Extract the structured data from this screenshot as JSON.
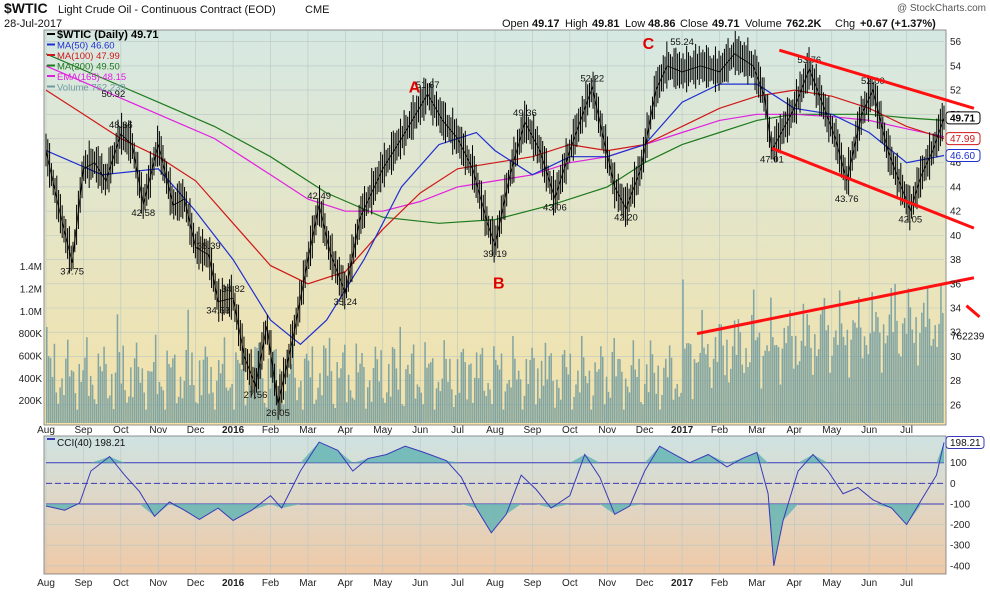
{
  "header": {
    "symbol": "$WTIC",
    "title": "Light Crude Oil - Continuous Contract (EOD)",
    "exchange": "CME",
    "date": "28-Jul-2017",
    "open_label": "Open",
    "open": "49.17",
    "high_label": "High",
    "high": "49.81",
    "low_label": "Low",
    "low": "48.86",
    "close_label": "Close",
    "close": "49.71",
    "volume_label": "Volume",
    "volume": "762.2K",
    "chg_label": "Chg",
    "chg": "+0.67 (+1.37%)",
    "watermark": "@ StockCharts.com"
  },
  "colors": {
    "price": "#000000",
    "ma50": "#1f2fd0",
    "ma100": "#d01818",
    "ma200": "#1d7a1d",
    "ema165": "#e020e0",
    "volume": "#6e9aa0",
    "cci": "#3a3ab8",
    "trend": "#ff1010",
    "price_bg_top": "#d6e8e3",
    "price_bg_bottom": "#f4e2a8",
    "cci_bg_top": "#cfe3e2",
    "cci_bg_bottom": "#f0c9a6"
  },
  "chart_data": [
    {
      "type": "line",
      "panel": "price",
      "legend": [
        {
          "label": "$WTIC (Daily) 49.71",
          "color": "#000000"
        },
        {
          "label": "MA(50) 46.60",
          "color": "#1f2fd0"
        },
        {
          "label": "MA(100) 47.99",
          "color": "#d01818"
        },
        {
          "label": "MA(200) 49.50",
          "color": "#1d7a1d"
        },
        {
          "label": "EMA(165) 48.15",
          "color": "#e020e0"
        },
        {
          "label": "Volume 762,239",
          "color": "#6e9aa0"
        }
      ],
      "x_ticks": [
        "Aug",
        "Sep",
        "Oct",
        "Nov",
        "Dec",
        "2016",
        "Feb",
        "Mar",
        "Apr",
        "May",
        "Jun",
        "Jul",
        "Aug",
        "Sep",
        "Oct",
        "Nov",
        "Dec",
        "2017",
        "Feb",
        "Mar",
        "Apr",
        "May",
        "Jun",
        "Jul"
      ],
      "x_tick_pos": [
        0,
        1,
        2,
        3,
        4,
        5,
        6,
        7,
        8,
        9,
        10,
        11,
        12,
        13,
        14,
        15,
        16,
        17,
        18,
        19,
        20,
        21,
        22,
        23
      ],
      "x_range": [
        0,
        24
      ],
      "y_ticks": [
        26,
        28,
        30,
        32,
        34,
        36,
        38,
        40,
        42,
        44,
        46,
        48,
        50,
        52,
        54,
        56
      ],
      "ylim": [
        24.5,
        56.8
      ],
      "volume_ticks": [
        "200K",
        "400K",
        "600K",
        "800K",
        "1.0M",
        "1.2M",
        "1.4M"
      ],
      "volume_tick_values": [
        200000,
        400000,
        600000,
        800000,
        1000000,
        1200000,
        1400000
      ],
      "volume_max": 3500000,
      "price_points": [
        [
          0.0,
          47.0
        ],
        [
          0.4,
          41.5
        ],
        [
          0.7,
          37.75
        ],
        [
          1.0,
          45.5
        ],
        [
          1.3,
          46.0
        ],
        [
          1.6,
          44.5
        ],
        [
          2.0,
          48.36
        ],
        [
          2.3,
          47.5
        ],
        [
          2.6,
          42.58
        ],
        [
          3.0,
          47.5
        ],
        [
          3.4,
          42.5
        ],
        [
          3.7,
          43.0
        ],
        [
          4.0,
          39.0
        ],
        [
          4.35,
          38.39
        ],
        [
          4.6,
          34.53
        ],
        [
          5.0,
          34.82
        ],
        [
          5.3,
          30.0
        ],
        [
          5.6,
          27.56
        ],
        [
          5.9,
          32.5
        ],
        [
          6.2,
          26.05
        ],
        [
          6.6,
          31.5
        ],
        [
          7.0,
          38.0
        ],
        [
          7.3,
          42.49
        ],
        [
          7.6,
          38.5
        ],
        [
          8.0,
          35.24
        ],
        [
          8.4,
          41.5
        ],
        [
          9.0,
          45.5
        ],
        [
          9.5,
          48.0
        ],
        [
          10.2,
          51.67
        ],
        [
          10.6,
          49.5
        ],
        [
          11.0,
          48.0
        ],
        [
          11.4,
          45.5
        ],
        [
          11.8,
          41.0
        ],
        [
          12.0,
          39.19
        ],
        [
          12.4,
          45.0
        ],
        [
          12.8,
          49.36
        ],
        [
          13.2,
          47.0
        ],
        [
          13.6,
          43.06
        ],
        [
          14.0,
          47.0
        ],
        [
          14.6,
          52.22
        ],
        [
          14.9,
          48.0
        ],
        [
          15.2,
          44.0
        ],
        [
          15.5,
          42.2
        ],
        [
          15.9,
          45.5
        ],
        [
          16.3,
          52.0
        ],
        [
          16.6,
          54.0
        ],
        [
          17.0,
          53.5
        ],
        [
          17.5,
          54.0
        ],
        [
          18.0,
          53.5
        ],
        [
          18.4,
          55.0
        ],
        [
          18.9,
          54.0
        ],
        [
          19.2,
          51.5
        ],
        [
          19.4,
          47.01
        ],
        [
          20.0,
          50.5
        ],
        [
          20.4,
          53.76
        ],
        [
          20.8,
          50.5
        ],
        [
          21.1,
          48.0
        ],
        [
          21.4,
          44.5
        ],
        [
          21.8,
          50.0
        ],
        [
          22.1,
          52.0
        ],
        [
          22.5,
          47.0
        ],
        [
          22.8,
          44.5
        ],
        [
          23.1,
          42.05
        ],
        [
          23.4,
          45.0
        ],
        [
          23.7,
          47.0
        ],
        [
          24.0,
          49.71
        ]
      ],
      "ma50": [
        [
          0.0,
          47.0
        ],
        [
          1.5,
          45.0
        ],
        [
          3.0,
          45.5
        ],
        [
          4.0,
          42.0
        ],
        [
          5.0,
          38.0
        ],
        [
          6.0,
          33.0
        ],
        [
          6.8,
          31.0
        ],
        [
          7.5,
          33.0
        ],
        [
          8.5,
          38.0
        ],
        [
          9.5,
          44.0
        ],
        [
          10.5,
          47.5
        ],
        [
          11.5,
          48.5
        ],
        [
          12.0,
          47.0
        ],
        [
          13.0,
          45.0
        ],
        [
          14.0,
          46.5
        ],
        [
          15.0,
          46.5
        ],
        [
          16.0,
          47.5
        ],
        [
          17.0,
          51.0
        ],
        [
          18.0,
          52.5
        ],
        [
          19.0,
          52.5
        ],
        [
          20.0,
          50.5
        ],
        [
          21.0,
          50.0
        ],
        [
          22.0,
          48.5
        ],
        [
          23.0,
          46.0
        ],
        [
          24.0,
          46.6
        ]
      ],
      "ma100": [
        [
          0.0,
          52.0
        ],
        [
          1.0,
          50.0
        ],
        [
          2.0,
          48.0
        ],
        [
          3.0,
          46.5
        ],
        [
          4.0,
          44.5
        ],
        [
          5.0,
          41.0
        ],
        [
          6.0,
          37.5
        ],
        [
          7.0,
          36.0
        ],
        [
          8.0,
          37.0
        ],
        [
          9.0,
          40.5
        ],
        [
          10.0,
          43.5
        ],
        [
          11.0,
          45.5
        ],
        [
          12.0,
          46.0
        ],
        [
          13.0,
          46.5
        ],
        [
          14.0,
          47.5
        ],
        [
          15.0,
          47.0
        ],
        [
          16.0,
          47.5
        ],
        [
          17.0,
          49.0
        ],
        [
          18.0,
          50.5
        ],
        [
          19.0,
          51.5
        ],
        [
          20.0,
          52.0
        ],
        [
          21.0,
          51.5
        ],
        [
          22.0,
          50.5
        ],
        [
          23.0,
          49.0
        ],
        [
          24.0,
          47.99
        ]
      ],
      "ma200": [
        [
          0.0,
          55.0
        ],
        [
          1.5,
          53.0
        ],
        [
          3.0,
          51.0
        ],
        [
          4.5,
          49.0
        ],
        [
          6.0,
          46.5
        ],
        [
          7.5,
          43.5
        ],
        [
          9.0,
          41.5
        ],
        [
          10.5,
          41.0
        ],
        [
          12.0,
          41.3
        ],
        [
          13.5,
          42.5
        ],
        [
          15.0,
          44.0
        ],
        [
          16.0,
          46.0
        ],
        [
          17.0,
          47.5
        ],
        [
          18.0,
          48.5
        ],
        [
          19.0,
          49.5
        ],
        [
          20.0,
          50.0
        ],
        [
          21.0,
          50.0
        ],
        [
          22.0,
          50.0
        ],
        [
          23.0,
          49.7
        ],
        [
          24.0,
          49.5
        ]
      ],
      "ema165": [
        [
          0.0,
          54.0
        ],
        [
          1.5,
          52.0
        ],
        [
          3.0,
          50.0
        ],
        [
          4.5,
          48.0
        ],
        [
          6.0,
          45.0
        ],
        [
          7.0,
          43.0
        ],
        [
          8.0,
          42.0
        ],
        [
          9.0,
          42.0
        ],
        [
          10.0,
          42.8
        ],
        [
          11.0,
          44.0
        ],
        [
          12.0,
          44.5
        ],
        [
          13.0,
          45.0
        ],
        [
          14.0,
          46.0
        ],
        [
          15.0,
          46.5
        ],
        [
          16.0,
          47.5
        ],
        [
          17.0,
          48.5
        ],
        [
          18.0,
          49.5
        ],
        [
          19.0,
          50.0
        ],
        [
          20.0,
          50.0
        ],
        [
          21.0,
          49.8
        ],
        [
          22.0,
          49.5
        ],
        [
          23.0,
          48.8
        ],
        [
          24.0,
          48.15
        ]
      ],
      "price_labels": [
        {
          "text": "37.75",
          "x": 0.7,
          "y": 37.75,
          "pos": "below"
        },
        {
          "text": "50.92",
          "x": 1.8,
          "y": 50.92,
          "pos": "above"
        },
        {
          "text": "48.36",
          "x": 2.0,
          "y": 48.36,
          "pos": "above"
        },
        {
          "text": "42.58",
          "x": 2.6,
          "y": 42.58,
          "pos": "below"
        },
        {
          "text": "38.39",
          "x": 4.35,
          "y": 38.39,
          "pos": "above"
        },
        {
          "text": "34.53",
          "x": 4.6,
          "y": 34.53,
          "pos": "below"
        },
        {
          "text": "34.82",
          "x": 5.0,
          "y": 34.82,
          "pos": "above"
        },
        {
          "text": "27.56",
          "x": 5.6,
          "y": 27.56,
          "pos": "below"
        },
        {
          "text": "26.05",
          "x": 6.2,
          "y": 26.05,
          "pos": "below"
        },
        {
          "text": "42.49",
          "x": 7.3,
          "y": 42.49,
          "pos": "above"
        },
        {
          "text": "35.24",
          "x": 8.0,
          "y": 35.24,
          "pos": "below"
        },
        {
          "text": "51.67",
          "x": 10.2,
          "y": 51.67,
          "pos": "above"
        },
        {
          "text": "39.19",
          "x": 12.0,
          "y": 39.19,
          "pos": "below"
        },
        {
          "text": "49.36",
          "x": 12.8,
          "y": 49.36,
          "pos": "above"
        },
        {
          "text": "43.06",
          "x": 13.6,
          "y": 43.06,
          "pos": "below"
        },
        {
          "text": "52.22",
          "x": 14.6,
          "y": 52.22,
          "pos": "above"
        },
        {
          "text": "42.20",
          "x": 15.5,
          "y": 42.2,
          "pos": "below"
        },
        {
          "text": "55.24",
          "x": 17.0,
          "y": 55.24,
          "pos": "above"
        },
        {
          "text": "47.01",
          "x": 19.4,
          "y": 47.01,
          "pos": "below"
        },
        {
          "text": "53.76",
          "x": 20.4,
          "y": 53.76,
          "pos": "above"
        },
        {
          "text": "43.76",
          "x": 21.4,
          "y": 43.76,
          "pos": "below"
        },
        {
          "text": "52.00",
          "x": 22.1,
          "y": 52.0,
          "pos": "above"
        },
        {
          "text": "42.05",
          "x": 23.1,
          "y": 42.05,
          "pos": "below"
        }
      ],
      "wave_labels": [
        {
          "text": "A",
          "x": 9.85,
          "y": 51.8
        },
        {
          "text": "B",
          "x": 12.1,
          "y": 35.6
        },
        {
          "text": "C",
          "x": 16.1,
          "y": 55.4
        }
      ],
      "trend_lines": [
        {
          "from": [
            19.6,
            55.3
          ],
          "to": [
            24.8,
            50.5
          ]
        },
        {
          "from": [
            19.4,
            47.2
          ],
          "to": [
            24.8,
            40.6
          ]
        }
      ],
      "volume_trend": {
        "from": [
          17.4,
          800000
        ],
        "to": [
          24.8,
          1300000
        ]
      },
      "volume_arrow": {
        "from": [
          24.6,
          1050000
        ],
        "to": [
          24.95,
          950000
        ]
      },
      "right_price_tags": [
        {
          "text": "49.71",
          "value": 49.71,
          "color": "#000000",
          "bold": true
        },
        {
          "text": "47.99",
          "value": 47.99,
          "color": "#d01818",
          "bold": false
        },
        {
          "text": "46.60",
          "value": 46.6,
          "color": "#1f2fd0",
          "bold": false
        }
      ],
      "volume_tag": "762239"
    },
    {
      "type": "line",
      "panel": "cci",
      "legend": [
        {
          "label": "CCI(40) 198.21",
          "color": "#3a3ab8"
        }
      ],
      "y_ticks": [
        -400,
        -300,
        -200,
        -100,
        0,
        100
      ],
      "ylim": [
        -430,
        220
      ],
      "x_range": [
        0,
        24
      ],
      "ref_lines": [
        100,
        0,
        -100
      ],
      "last_value_tag": "198.21",
      "points": [
        [
          0.0,
          -110
        ],
        [
          0.5,
          -130
        ],
        [
          0.9,
          -95
        ],
        [
          1.2,
          60
        ],
        [
          1.7,
          130
        ],
        [
          2.1,
          40
        ],
        [
          2.5,
          -40
        ],
        [
          2.9,
          -160
        ],
        [
          3.3,
          -90
        ],
        [
          3.7,
          -130
        ],
        [
          4.1,
          -175
        ],
        [
          4.6,
          -120
        ],
        [
          5.0,
          -180
        ],
        [
          5.5,
          -130
        ],
        [
          6.0,
          -60
        ],
        [
          6.3,
          -120
        ],
        [
          6.8,
          60
        ],
        [
          7.3,
          200
        ],
        [
          7.8,
          160
        ],
        [
          8.2,
          60
        ],
        [
          8.6,
          120
        ],
        [
          9.1,
          140
        ],
        [
          9.6,
          180
        ],
        [
          10.1,
          150
        ],
        [
          10.7,
          110
        ],
        [
          11.1,
          30
        ],
        [
          11.5,
          -120
        ],
        [
          11.9,
          -240
        ],
        [
          12.3,
          -150
        ],
        [
          12.7,
          40
        ],
        [
          13.1,
          -30
        ],
        [
          13.5,
          -120
        ],
        [
          14.0,
          -60
        ],
        [
          14.4,
          140
        ],
        [
          14.8,
          30
        ],
        [
          15.2,
          -150
        ],
        [
          15.6,
          -110
        ],
        [
          16.0,
          60
        ],
        [
          16.4,
          180
        ],
        [
          16.8,
          140
        ],
        [
          17.2,
          100
        ],
        [
          17.7,
          140
        ],
        [
          18.2,
          80
        ],
        [
          18.6,
          120
        ],
        [
          19.0,
          150
        ],
        [
          19.3,
          -50
        ],
        [
          19.45,
          -400
        ],
        [
          19.7,
          -180
        ],
        [
          20.1,
          60
        ],
        [
          20.5,
          140
        ],
        [
          20.9,
          60
        ],
        [
          21.3,
          -50
        ],
        [
          21.7,
          -20
        ],
        [
          22.1,
          -80
        ],
        [
          22.6,
          -120
        ],
        [
          23.0,
          -200
        ],
        [
          23.4,
          -80
        ],
        [
          23.8,
          40
        ],
        [
          24.0,
          198.21
        ]
      ],
      "x_ticks": [
        "Aug",
        "Sep",
        "Oct",
        "Nov",
        "Dec",
        "2016",
        "Feb",
        "Mar",
        "Apr",
        "May",
        "Jun",
        "Jul",
        "Aug",
        "Sep",
        "Oct",
        "Nov",
        "Dec",
        "2017",
        "Feb",
        "Mar",
        "Apr",
        "May",
        "Jun",
        "Jul"
      ]
    }
  ]
}
